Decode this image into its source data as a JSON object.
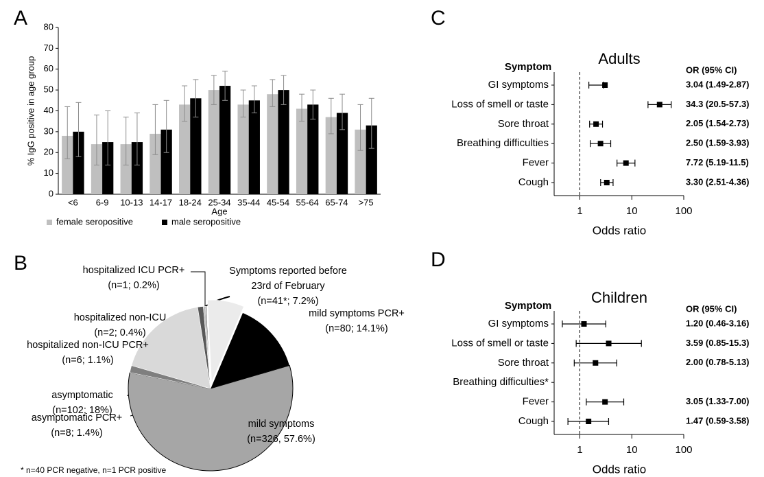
{
  "chart_data": [
    {
      "type": "bar",
      "label": "A",
      "ylabel": "% IgG positive in age group",
      "xlabel": "Age",
      "categories": [
        "<6",
        "6-9",
        "10-13",
        "14-17",
        "18-24",
        "25-34",
        "35-44",
        "45-54",
        "55-64",
        "65-74",
        ">75"
      ],
      "series": [
        {
          "name": "female seropositive",
          "color": "#bfbfbf",
          "values": [
            28,
            24,
            24,
            29,
            43,
            50,
            43,
            48,
            41,
            37,
            31
          ],
          "ci": [
            [
              17,
              42
            ],
            [
              14,
              38
            ],
            [
              14,
              37
            ],
            [
              19,
              43
            ],
            [
              35,
              52
            ],
            [
              43,
              57
            ],
            [
              37,
              50
            ],
            [
              42,
              55
            ],
            [
              35,
              48
            ],
            [
              29,
              46
            ],
            [
              21,
              43
            ]
          ]
        },
        {
          "name": "male seropositive",
          "color": "#000000",
          "values": [
            30,
            25,
            25,
            31,
            46,
            52,
            45,
            50,
            43,
            39,
            33
          ],
          "ci": [
            [
              18,
              44
            ],
            [
              14,
              40
            ],
            [
              14,
              39
            ],
            [
              20,
              45
            ],
            [
              37,
              55
            ],
            [
              45,
              59
            ],
            [
              39,
              52
            ],
            [
              43,
              57
            ],
            [
              36,
              50
            ],
            [
              31,
              48
            ],
            [
              22,
              46
            ]
          ]
        }
      ],
      "ylim": [
        0,
        80
      ],
      "yticks": [
        0,
        10,
        20,
        30,
        40,
        50,
        60,
        70,
        80
      ],
      "legend": "bottom-left"
    },
    {
      "type": "pie",
      "label": "B",
      "categories": [
        "mild symptoms PCR+",
        "mild symptoms",
        "asymptomatic PCR+",
        "asymptomatic",
        "hospitalized non-ICU PCR+",
        "hospitalized non-ICU",
        "hospitalized ICU PCR+",
        "Symptoms reported before 23rd of February"
      ],
      "values": [
        14.1,
        57.6,
        1.4,
        18,
        1.1,
        0.4,
        0.2,
        7.2
      ],
      "value_labels": [
        "(n=80; 14.1%)",
        "(n=326, 57.6%)",
        "(n=8; 1.4%)",
        "(n=102; 18%)",
        "(n=6; 1.1%)",
        "(n=2;  0.4%)",
        "(n=1; 0.2%)",
        "(n=41*; 7.2%)"
      ],
      "colors": [
        "#000000",
        "#a6a6a6",
        "#7f7f7f",
        "#d9d9d9",
        "#595959",
        "#bfbfbf",
        "#404040",
        "#ebebeb"
      ],
      "footnote": "* n=40 PCR negative, n=1 PCR positive"
    },
    {
      "type": "forest",
      "label": "C",
      "title": "Adults",
      "category_header": "Symptom",
      "value_header": "OR (95% CI)",
      "categories": [
        "GI symptoms",
        "Loss of smell or taste",
        "Sore throat",
        "Breathing difficulties",
        "Fever",
        "Cough"
      ],
      "values": [
        3.04,
        34.3,
        2.05,
        2.5,
        7.72,
        3.3
      ],
      "ci": [
        [
          1.49,
          2.87
        ],
        [
          20.5,
          57.3
        ],
        [
          1.54,
          2.73
        ],
        [
          1.59,
          3.93
        ],
        [
          5.19,
          11.5
        ],
        [
          2.51,
          4.36
        ]
      ],
      "value_labels": [
        "3.04 (1.49-2.87)",
        "34.3 (20.5-57.3)",
        "2.05 (1.54-2.73)",
        "2.50 (1.59-3.93)",
        "7.72 (5.19-11.5)",
        "3.30 (2.51-4.36)"
      ],
      "xlabel": "Odds ratio",
      "xlim": [
        0.32,
        100
      ],
      "xticks": [
        1,
        10,
        100
      ],
      "log_x": true,
      "reference_line": 1
    },
    {
      "type": "forest",
      "label": "D",
      "title": "Children",
      "category_header": "Symptom",
      "value_header": "OR (95% CI)",
      "categories": [
        "GI symptoms",
        "Loss of smell or taste",
        "Sore throat",
        "Breathing difficulties*",
        "Fever",
        "Cough"
      ],
      "values": [
        1.2,
        3.59,
        2.0,
        null,
        3.05,
        1.47
      ],
      "ci": [
        [
          0.46,
          3.16
        ],
        [
          0.85,
          15.3
        ],
        [
          0.78,
          5.13
        ],
        null,
        [
          1.33,
          7.0
        ],
        [
          0.59,
          3.58
        ]
      ],
      "value_labels": [
        "1.20 (0.46-3.16)",
        "3.59 (0.85-15.3)",
        "2.00 (0.78-5.13)",
        null,
        "3.05 (1.33-7.00)",
        "1.47 (0.59-3.58)"
      ],
      "xlabel": "Odds ratio",
      "xlim": [
        0.32,
        100
      ],
      "xticks": [
        1,
        10,
        100
      ],
      "log_x": true,
      "reference_line": 1
    }
  ]
}
